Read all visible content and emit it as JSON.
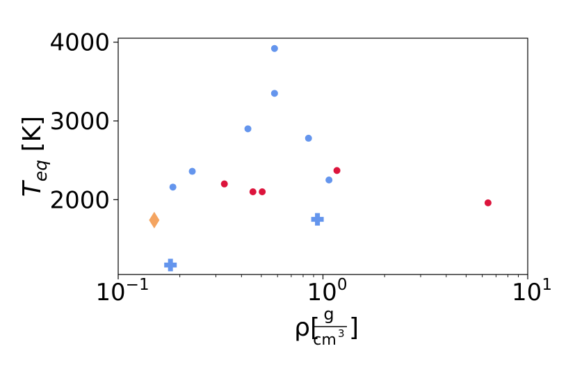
{
  "chart_data": {
    "type": "scatter",
    "title": "",
    "x_scale": "log",
    "xlim": [
      0.1,
      10
    ],
    "ylim": [
      1050,
      4050
    ],
    "xlabel": {
      "main": "ρ[",
      "frac_num": "g",
      "frac_den": "cm",
      "frac_den_exp": "3",
      "close": "]"
    },
    "ylabel": {
      "main": "T",
      "sub": "eq",
      "unit": " [K]"
    },
    "x_ticks": [
      {
        "value": 0.1,
        "base": "10",
        "exp": "−1"
      },
      {
        "value": 1,
        "base": "10",
        "exp": "0"
      },
      {
        "value": 10,
        "base": "10",
        "exp": "1"
      }
    ],
    "y_ticks": [
      {
        "value": 2000,
        "label": "2000"
      },
      {
        "value": 3000,
        "label": "3000"
      },
      {
        "value": 4000,
        "label": "4000"
      }
    ],
    "grid": false,
    "legend": "none",
    "series": [
      {
        "marker": "circle",
        "color": "#6495ED",
        "points": [
          [
            0.185,
            2160
          ],
          [
            0.23,
            2360
          ],
          [
            0.43,
            2900
          ],
          [
            0.58,
            3920
          ],
          [
            0.58,
            3350
          ],
          [
            0.85,
            2780
          ],
          [
            1.07,
            2250
          ]
        ]
      },
      {
        "marker": "circle",
        "color": "#DC143C",
        "points": [
          [
            0.33,
            2200
          ],
          [
            0.455,
            2100
          ],
          [
            0.505,
            2100
          ],
          [
            1.17,
            2370
          ],
          [
            6.4,
            1960
          ]
        ]
      },
      {
        "marker": "plus",
        "color": "#6495ED",
        "points": [
          [
            0.18,
            1170
          ],
          [
            0.94,
            1750
          ]
        ]
      },
      {
        "marker": "diamond",
        "color": "#F4A460",
        "points": [
          [
            0.15,
            1740
          ]
        ]
      }
    ]
  }
}
